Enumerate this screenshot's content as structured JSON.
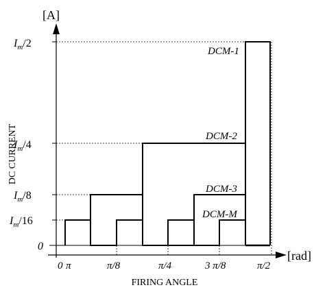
{
  "axes": {
    "y_unit": "[A]",
    "x_unit": "[rad]",
    "y_title": "DC CURRENT",
    "x_title": "FIRING ANGLE"
  },
  "y_ticks": {
    "zero": "0",
    "m16": {
      "main": "I",
      "sub": "m",
      "tail": "/16"
    },
    "m8": {
      "main": "I",
      "sub": "m",
      "tail": "/8"
    },
    "m4": {
      "main": "I",
      "sub": "m",
      "tail": "/4"
    },
    "m2": {
      "main": "I",
      "sub": "m",
      "tail": "/2"
    }
  },
  "x_ticks": {
    "t0": "0",
    "t1": "π",
    "t2": "π/8",
    "t3": "π/4",
    "t4": "3 π/8",
    "t5": "π/2"
  },
  "curves": {
    "dcm1": "DCM-1",
    "dcm2": "DCM-2",
    "dcm3": "DCM-3",
    "dcmm": "DCM-M"
  },
  "levels": {
    "m16": 0.0625,
    "m8": 0.125,
    "m4": 0.25,
    "m2": 0.5
  }
}
